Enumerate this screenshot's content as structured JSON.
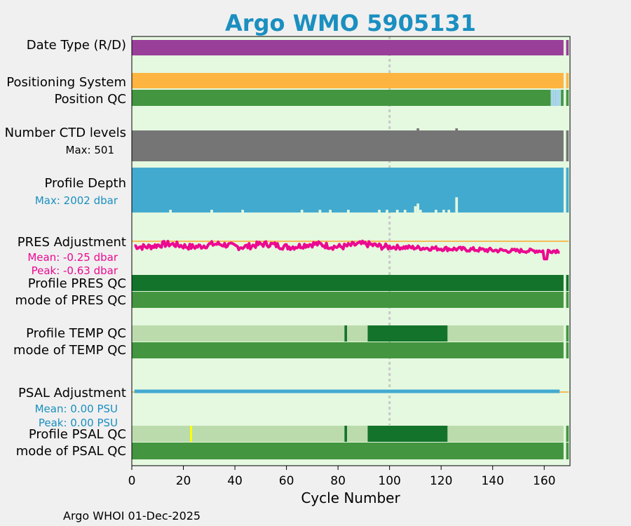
{
  "chart_data": {
    "type": "bar",
    "title": "Argo WMO 5905131",
    "xlabel": "Cycle Number",
    "xlim": [
      0,
      170
    ],
    "xticks": [
      0,
      20,
      40,
      60,
      80,
      100,
      120,
      140,
      160
    ],
    "footer": "Argo WHOI 01-Dec-2025",
    "reference_cycle": 100,
    "last_cycle": 167,
    "colors": {
      "background": "#e5f8e0",
      "date_type": "#993f99",
      "positioning": "#fdb441",
      "qc_good": "#43963f",
      "qc_dark": "#13732a",
      "qc_light": "#bbdbac",
      "position_qc_flag": "#a9d6e9",
      "ctd_levels": "#757575",
      "profile_depth": "#43aacf",
      "pres_adjustment": "#ec0990",
      "psal_adjustment": "#43aacf",
      "reference_line": "#f5bc57",
      "psal_bad_flag": "#ffff00",
      "label_blue": "#1a8fc0",
      "label_magenta": "#ec0990"
    },
    "rows": {
      "date_type": {
        "label": "Date Type (R/D)"
      },
      "positioning": {
        "label": "Positioning System"
      },
      "position_qc": {
        "label": "Position QC",
        "flag_cycles": [
          163,
          164,
          165,
          166
        ]
      },
      "ctd_levels": {
        "label": "Number CTD levels",
        "max_label": "Max: 501",
        "spike_cycles": [
          111,
          126
        ]
      },
      "profile_depth": {
        "label": "Profile Depth",
        "max_label": "Max: 2002 dbar",
        "shallow_profiles": [
          {
            "cycle": 15,
            "fraction": 0.06
          },
          {
            "cycle": 31,
            "fraction": 0.06
          },
          {
            "cycle": 43,
            "fraction": 0.06
          },
          {
            "cycle": 66,
            "fraction": 0.06
          },
          {
            "cycle": 73,
            "fraction": 0.06
          },
          {
            "cycle": 77,
            "fraction": 0.06
          },
          {
            "cycle": 84,
            "fraction": 0.06
          },
          {
            "cycle": 96,
            "fraction": 0.06
          },
          {
            "cycle": 99,
            "fraction": 0.06
          },
          {
            "cycle": 103,
            "fraction": 0.06
          },
          {
            "cycle": 106,
            "fraction": 0.06
          },
          {
            "cycle": 110,
            "fraction": 0.14
          },
          {
            "cycle": 111,
            "fraction": 0.2
          },
          {
            "cycle": 112,
            "fraction": 0.06
          },
          {
            "cycle": 118,
            "fraction": 0.06
          },
          {
            "cycle": 121,
            "fraction": 0.06
          },
          {
            "cycle": 123,
            "fraction": 0.06
          },
          {
            "cycle": 126,
            "fraction": 0.34
          }
        ]
      },
      "pres_adjustment": {
        "label": "PRES Adjustment",
        "mean_label": "Mean: -0.25 dbar",
        "peak_label": "Peak: -0.63 dbar",
        "mean": -0.25,
        "peak": -0.63
      },
      "profile_pres_qc": {
        "label": "Profile PRES QC"
      },
      "mode_pres_qc": {
        "label": "mode of PRES QC"
      },
      "profile_temp_qc": {
        "label": "Profile TEMP QC",
        "segments": [
          {
            "from": 0,
            "to": 82.5,
            "level": "light"
          },
          {
            "from": 82.5,
            "to": 83.5,
            "level": "dark"
          },
          {
            "from": 83.5,
            "to": 91.5,
            "level": "light"
          },
          {
            "from": 91.5,
            "to": 122.5,
            "level": "dark"
          },
          {
            "from": 122.5,
            "to": 167.5,
            "level": "light"
          }
        ]
      },
      "mode_temp_qc": {
        "label": "mode of TEMP QC"
      },
      "psal_adjustment": {
        "label": "PSAL Adjustment",
        "mean_label": "Mean: 0.00 PSU",
        "peak_label": "Peak: 0.00 PSU",
        "mean": 0.0,
        "peak": 0.0
      },
      "profile_psal_qc": {
        "label": "Profile PSAL QC",
        "bad_cycles": [
          23
        ],
        "segments": [
          {
            "from": 0,
            "to": 82.5,
            "level": "light"
          },
          {
            "from": 82.5,
            "to": 83.5,
            "level": "dark"
          },
          {
            "from": 83.5,
            "to": 91.5,
            "level": "light"
          },
          {
            "from": 91.5,
            "to": 122.5,
            "level": "dark"
          },
          {
            "from": 122.5,
            "to": 167.5,
            "level": "light"
          }
        ]
      },
      "mode_psal_qc": {
        "label": "mode of PSAL QC"
      }
    }
  }
}
